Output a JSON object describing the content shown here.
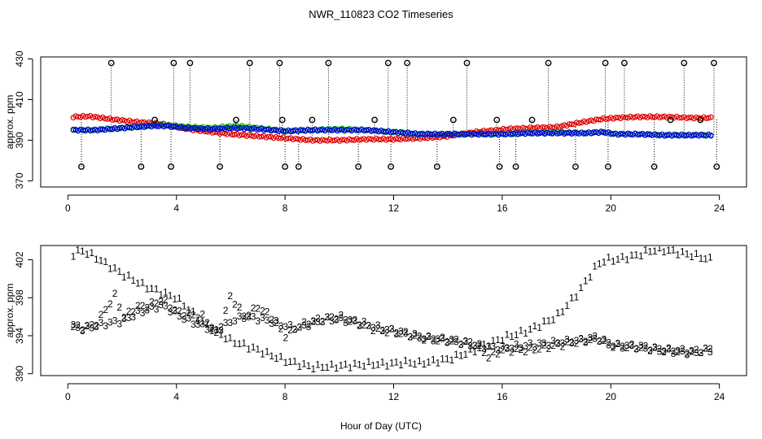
{
  "chart_data": {
    "title": "NWR_110823  CO2 Timeseries",
    "xlabel": "Hour of Day (UTC)",
    "x_ticks": [
      0,
      4,
      8,
      12,
      16,
      20,
      24
    ],
    "xlim": [
      -1,
      25
    ],
    "panels": [
      {
        "type": "scatter",
        "ylabel": "approx. ppm",
        "ylim": [
          367,
          431
        ],
        "y_ticks": [
          370,
          390,
          410,
          430
        ],
        "series": [
          {
            "name": "1",
            "color": "#e00000",
            "marker": "o",
            "x": [
              0.2,
              0.8,
              1.5,
              2.5,
              3.5,
              4.2,
              5.0,
              6.0,
              7.0,
              8.0,
              9.0,
              10.0,
              11.0,
              12.0,
              13.0,
              14.0,
              15.0,
              15.8,
              16.2,
              17.0,
              18.0,
              19.0,
              19.7,
              20.2,
              21.0,
              22.0,
              23.0,
              23.7
            ],
            "y": [
              401.5,
              401.8,
              400.5,
              399.0,
              398.0,
              396.0,
              394.5,
              393.0,
              392.0,
              391.0,
              390.0,
              390.0,
              390.5,
              390.5,
              391.0,
              392.0,
              394.0,
              395.0,
              395.5,
              396.0,
              396.5,
              399.0,
              400.5,
              401.0,
              401.5,
              401.5,
              401.0,
              401.0
            ]
          },
          {
            "name": "2",
            "color": "#00b000",
            "marker": "o",
            "x": [
              0.2,
              1.0,
              2.0,
              3.0,
              3.6,
              4.4,
              5.3,
              6.2,
              7.0,
              8.0,
              9.0,
              10.0,
              11.0,
              12.0,
              13.0,
              14.0,
              15.0,
              16.0,
              17.0,
              18.0,
              19.0,
              19.7,
              20.2,
              21.0,
              22.0,
              23.0,
              23.7
            ],
            "y": [
              395.0,
              395.0,
              396.0,
              397.0,
              397.5,
              396.5,
              396.0,
              397.0,
              396.0,
              394.5,
              395.0,
              395.5,
              395.0,
              394.0,
              393.0,
              393.0,
              393.0,
              393.0,
              393.5,
              394.0,
              393.5,
              394.0,
              393.0,
              393.0,
              392.5,
              392.5,
              392.5
            ]
          },
          {
            "name": "3",
            "color": "#0000e0",
            "marker": "o",
            "x": [
              0.2,
              1.0,
              2.0,
              3.0,
              3.6,
              4.4,
              5.3,
              6.2,
              7.0,
              8.0,
              9.0,
              10.0,
              11.0,
              12.0,
              13.0,
              14.0,
              15.0,
              16.0,
              17.0,
              18.0,
              19.0,
              19.7,
              20.2,
              21.0,
              22.0,
              23.0,
              23.7
            ],
            "y": [
              395.0,
              395.0,
              396.0,
              397.0,
              397.0,
              396.0,
              395.5,
              396.0,
              395.5,
              394.5,
              395.0,
              395.0,
              395.0,
              394.0,
              393.0,
              393.0,
              393.0,
              393.0,
              393.5,
              393.5,
              393.5,
              394.0,
              393.0,
              393.0,
              392.5,
              392.5,
              392.5
            ]
          },
          {
            "name": "outliers",
            "color": "#000000",
            "marker": "o",
            "x": [
              0.5,
              1.6,
              2.7,
              3.2,
              3.8,
              3.9,
              4.5,
              5.6,
              6.2,
              6.7,
              7.8,
              7.9,
              8.0,
              8.5,
              9.0,
              9.6,
              10.7,
              11.3,
              11.8,
              11.9,
              12.5,
              13.6,
              14.2,
              14.7,
              15.8,
              15.9,
              16.5,
              17.1,
              17.7,
              18.7,
              19.8,
              19.9,
              20.5,
              21.6,
              22.2,
              22.7,
              23.3,
              23.8,
              23.9
            ],
            "y": [
              377,
              428,
              377,
              400,
              377,
              428,
              428,
              377,
              400,
              428,
              428,
              400,
              377,
              377,
              400,
              428,
              377,
              400,
              428,
              377,
              428,
              377,
              400,
              428,
              400,
              377,
              377,
              400,
              428,
              377,
              428,
              377,
              428,
              377,
              400,
              428,
              400,
              428,
              377
            ]
          }
        ]
      },
      {
        "type": "scatter",
        "ylabel": "approx. ppm",
        "ylim": [
          389.8,
          403.5
        ],
        "y_ticks": [
          390,
          394,
          398,
          402
        ],
        "series": [
          {
            "name": "1",
            "color": "#e00000",
            "marker": "1",
            "x": [
              0.2,
              0.5,
              1.0,
              2.0,
              3.0,
              4.0,
              5.0,
              6.0,
              7.0,
              7.8,
              8.1,
              8.5,
              9.0,
              10.0,
              11.0,
              11.8,
              12.1,
              12.5,
              13.0,
              14.0,
              15.0,
              15.8,
              16.1,
              17.0,
              18.0,
              18.8,
              19.5,
              19.8,
              20.2,
              21.0,
              21.5,
              22.0,
              23.0,
              23.7
            ],
            "y": [
              402.6,
              403.0,
              402.3,
              400.5,
              399.0,
              398.0,
              395.3,
              393.5,
              392.5,
              391.6,
              391.3,
              391.0,
              390.7,
              390.8,
              391.0,
              391.0,
              391.1,
              391.2,
              391.1,
              391.5,
              392.5,
              393.5,
              393.8,
              394.6,
              396.0,
              398.5,
              401.5,
              402.0,
              402.0,
              402.5,
              403.0,
              403.0,
              402.5,
              402.0
            ]
          },
          {
            "name": "2",
            "color": "#00b000",
            "marker": "2",
            "x": [
              0.2,
              0.5,
              1.0,
              1.8,
              2.0,
              2.5,
              3.0,
              3.5,
              4.0,
              4.5,
              5.0,
              5.5,
              6.0,
              6.5,
              7.0,
              7.5,
              8.0,
              8.5,
              9.0,
              9.5,
              10.0,
              10.5,
              11.0,
              11.5,
              12.0,
              13.0,
              14.0,
              15.0,
              15.5,
              16.0,
              17.0,
              18.0,
              19.0,
              19.5,
              20.0,
              21.0,
              22.0,
              23.0,
              23.7
            ],
            "y": [
              395.0,
              394.8,
              395.1,
              398.5,
              395.8,
              397.0,
              397.2,
              397.8,
              396.5,
              396.2,
              396.0,
              394.0,
              398.2,
              396.0,
              397.0,
              396.0,
              394.0,
              395.0,
              395.5,
              395.8,
              396.0,
              395.5,
              395.0,
              394.5,
              394.5,
              393.8,
              393.5,
              393.2,
              391.8,
              392.5,
              392.5,
              393.0,
              393.5,
              393.8,
              393.0,
              392.8,
              392.5,
              392.3,
              392.6
            ]
          },
          {
            "name": "3",
            "color": "#0000e0",
            "marker": "3",
            "x": [
              0.2,
              0.5,
              1.0,
              1.8,
              2.0,
              2.5,
              3.0,
              3.5,
              4.0,
              4.5,
              5.0,
              5.5,
              6.0,
              6.5,
              7.0,
              7.5,
              8.0,
              8.5,
              9.0,
              9.5,
              10.0,
              10.5,
              11.0,
              11.5,
              12.0,
              13.0,
              14.0,
              15.0,
              15.5,
              16.0,
              17.0,
              18.0,
              19.0,
              19.5,
              20.0,
              21.0,
              22.0,
              23.0,
              23.7
            ],
            "y": [
              395.0,
              394.7,
              395.0,
              395.5,
              395.5,
              396.3,
              396.8,
              397.2,
              396.3,
              395.5,
              395.0,
              394.5,
              395.5,
              396.0,
              395.8,
              395.5,
              395.0,
              394.8,
              395.3,
              395.7,
              395.7,
              395.5,
              395.2,
              394.8,
              394.5,
              393.8,
              393.5,
              393.0,
              392.8,
              392.7,
              393.0,
              393.3,
              393.5,
              393.7,
              393.0,
              392.8,
              392.4,
              392.2,
              392.5
            ]
          }
        ]
      }
    ]
  }
}
